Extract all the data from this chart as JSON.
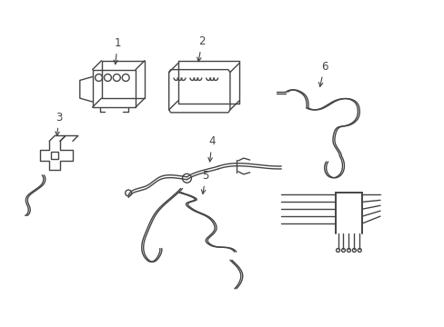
{
  "bg_color": "#ffffff",
  "line_color": "#444444",
  "lw": 1.0,
  "lw_thick": 1.4
}
